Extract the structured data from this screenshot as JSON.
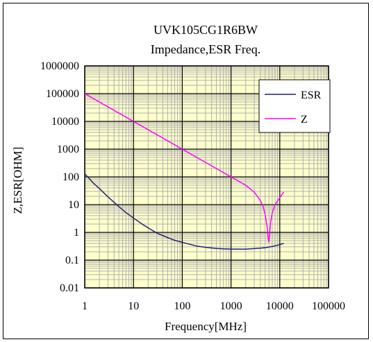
{
  "chart_data": {
    "type": "line",
    "title": "UVK105CG1R6BW",
    "subtitle": "Impedance,ESR Freq.",
    "xlabel": "Frequency[MHz]",
    "ylabel": "Z,ESR[OHM]",
    "x_scale": "log",
    "y_scale": "log",
    "xlim": [
      1,
      100000
    ],
    "ylim": [
      0.01,
      1000000
    ],
    "x_ticks": [
      "1",
      "10",
      "100",
      "1000",
      "10000",
      "100000"
    ],
    "y_ticks": [
      "1000000",
      "100000",
      "10000",
      "1000",
      "100",
      "10",
      "1",
      "0.1",
      "0.01"
    ],
    "grid": true,
    "legend_position": "top-right",
    "colors": {
      "plot_bg": "#ffffcc",
      "grid_minor": "#b0b0b0",
      "grid_major": "#000000"
    },
    "series": [
      {
        "name": "ESR",
        "color": "#1f1f7a",
        "x": [
          1,
          1.5,
          2,
          3,
          5,
          7,
          10,
          15,
          20,
          30,
          50,
          70,
          100,
          200,
          300,
          500,
          700,
          1000,
          2000,
          3000,
          5000,
          7000,
          10000,
          12000
        ],
        "y": [
          130,
          60,
          38,
          19,
          8.5,
          5.2,
          3.3,
          2.0,
          1.45,
          0.95,
          0.65,
          0.52,
          0.44,
          0.32,
          0.29,
          0.265,
          0.255,
          0.25,
          0.25,
          0.26,
          0.28,
          0.31,
          0.36,
          0.4
        ]
      },
      {
        "name": "Z",
        "color": "#ff00ff",
        "x": [
          1,
          10,
          100,
          1000,
          2000,
          3000,
          4000,
          4500,
          5000,
          5500,
          5800,
          6000,
          6200,
          6500,
          7000,
          8000,
          10000,
          12000
        ],
        "y": [
          100000,
          10000,
          1000,
          100,
          50,
          28,
          14,
          9,
          4.5,
          1.6,
          0.55,
          0.45,
          0.9,
          2.5,
          5,
          10,
          18,
          28
        ]
      }
    ]
  }
}
